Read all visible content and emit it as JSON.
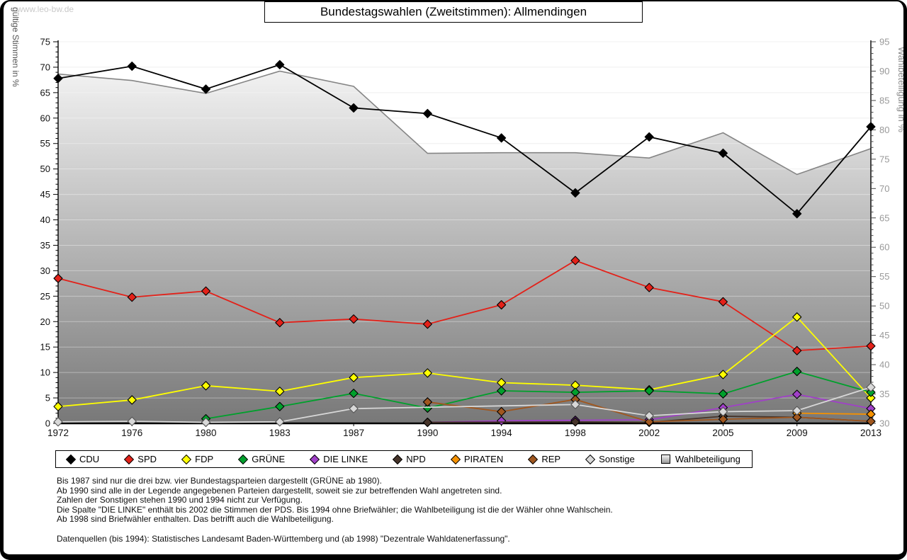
{
  "watermark": "www.leo-bw.de",
  "title": "Bundestagswahlen (Zweitstimmen): Allmendingen",
  "chart_data": {
    "type": "line",
    "x_categories": [
      "1972",
      "1976",
      "1980",
      "1983",
      "1987",
      "1990",
      "1994",
      "1998",
      "2002",
      "2005",
      "2009",
      "2013"
    ],
    "left_axis": {
      "label": "gültige Stimmen in %",
      "min": 0,
      "max": 75,
      "step": 5
    },
    "right_axis": {
      "label": "Wahlbeteiligung in %",
      "min": 30,
      "max": 95,
      "step": 5
    },
    "grid": true,
    "legend_position": "bottom",
    "series": [
      {
        "name": "CDU",
        "color": "#000000",
        "axis": "left",
        "values": [
          67.8,
          70.2,
          65.7,
          70.5,
          62.0,
          60.9,
          56.1,
          45.3,
          56.3,
          53.1,
          41.2,
          58.3
        ]
      },
      {
        "name": "SPD",
        "color": "#e32119",
        "axis": "left",
        "values": [
          28.5,
          24.8,
          26.0,
          19.8,
          20.5,
          19.5,
          23.3,
          32.0,
          26.7,
          23.9,
          14.3,
          15.2
        ]
      },
      {
        "name": "FDP",
        "color": "#ffff00",
        "axis": "left",
        "values": [
          3.3,
          4.6,
          7.4,
          6.3,
          9.0,
          9.9,
          8.0,
          7.5,
          6.6,
          9.6,
          20.9,
          5.0
        ]
      },
      {
        "name": "GRÜNE",
        "color": "#00a02c",
        "axis": "left",
        "values": [
          null,
          null,
          0.9,
          3.3,
          5.9,
          3.0,
          6.4,
          6.1,
          6.4,
          5.8,
          10.2,
          6.1
        ]
      },
      {
        "name": "DIE LINKE",
        "color": "#a040c8",
        "axis": "left",
        "values": [
          null,
          null,
          null,
          null,
          null,
          0.2,
          0.5,
          0.6,
          0.7,
          3.1,
          5.7,
          2.9
        ]
      },
      {
        "name": "NPD",
        "color": "#46342a",
        "axis": "left",
        "values": [
          null,
          null,
          null,
          null,
          null,
          0.2,
          null,
          0.3,
          0.2,
          1.4,
          1.2,
          0.4
        ]
      },
      {
        "name": "PIRATEN",
        "color": "#f59100",
        "axis": "left",
        "values": [
          null,
          null,
          null,
          null,
          null,
          null,
          null,
          null,
          null,
          null,
          2.0,
          1.8
        ]
      },
      {
        "name": "REP",
        "color": "#a0571f",
        "axis": "left",
        "values": [
          null,
          null,
          null,
          null,
          null,
          4.2,
          2.3,
          4.7,
          0.3,
          0.8,
          1.2,
          0.4
        ]
      },
      {
        "name": "Sonstige",
        "color": "#d8d8d8",
        "axis": "left",
        "values": [
          0.3,
          0.4,
          0.2,
          0.3,
          2.9,
          null,
          null,
          3.7,
          1.5,
          2.3,
          2.5,
          7.1
        ]
      }
    ],
    "turnout": {
      "name": "Wahlbeteiligung",
      "axis": "right",
      "area_top_color": "#fcfcfc",
      "area_bottom_color": "#787878",
      "edge_color": "#858585",
      "values": [
        89.5,
        88.4,
        86.2,
        90.0,
        87.4,
        76.0,
        76.1,
        76.1,
        75.2,
        79.5,
        72.4,
        76.8
      ]
    }
  },
  "footnotes": [
    "Bis 1987 sind nur die drei bzw. vier Bundestagsparteien dargestellt (GRÜNE ab 1980).",
    "Ab 1990 sind alle in der Legende angegebenen Parteien dargestellt, soweit sie zur betreffenden Wahl angetreten sind.",
    "Zahlen der Sonstigen stehen 1990 und 1994 nicht zur Verfügung.",
    "Die Spalte \"DIE LINKE\" enthält bis 2002 die Stimmen der PDS. Bis 1994 ohne Briefwähler; die Wahlbeteiligung ist die der Wähler ohne Wahlschein.",
    "Ab 1998 sind Briefwähler enthalten. Das betrifft auch die Wahlbeteiligung."
  ],
  "datasource": "Datenquellen (bis 1994): Statistisches Landesamt Baden-Württemberg und (ab 1998) \"Dezentrale Wahldatenerfassung\"."
}
